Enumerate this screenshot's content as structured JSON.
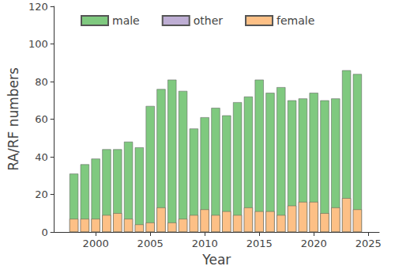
{
  "chart_data": {
    "type": "bar",
    "stacked": true,
    "x_label": "Year",
    "y_label": "RA/RF numbers",
    "x": [
      1998,
      1999,
      2000,
      2001,
      2002,
      2003,
      2004,
      2005,
      2006,
      2007,
      2008,
      2009,
      2010,
      2011,
      2012,
      2013,
      2014,
      2015,
      2016,
      2017,
      2018,
      2019,
      2020,
      2021,
      2022,
      2023,
      2024
    ],
    "series": [
      {
        "name": "male",
        "color": "#7fc97f",
        "values": [
          31,
          36,
          39,
          44,
          44,
          48,
          45,
          67,
          76,
          81,
          75,
          55,
          61,
          66,
          62,
          69,
          72,
          81,
          74,
          77,
          70,
          71,
          74,
          70,
          71,
          86,
          84
        ]
      },
      {
        "name": "other",
        "color": "#beaed4",
        "values": [
          0,
          0,
          0,
          0,
          0,
          0,
          0,
          0,
          0,
          0,
          0,
          0,
          0,
          0,
          0,
          0,
          0,
          0,
          0,
          0,
          0,
          0,
          0,
          0,
          0,
          0,
          0
        ]
      },
      {
        "name": "female",
        "color": "#fdc086",
        "values": [
          7,
          7,
          7,
          9,
          10,
          7,
          4,
          5,
          13,
          5,
          7,
          9,
          12,
          9,
          11,
          9,
          13,
          11,
          11,
          9,
          14,
          16,
          16,
          10,
          13,
          18,
          12
        ]
      }
    ],
    "xlim": [
      1996.2,
      2026
    ],
    "xticks": [
      2000,
      2005,
      2010,
      2015,
      2020,
      2025
    ],
    "ylim": [
      0,
      120
    ],
    "yticks": [
      0,
      20,
      40,
      60,
      80,
      100,
      120
    ],
    "legend": "upper center",
    "grid": false
  }
}
